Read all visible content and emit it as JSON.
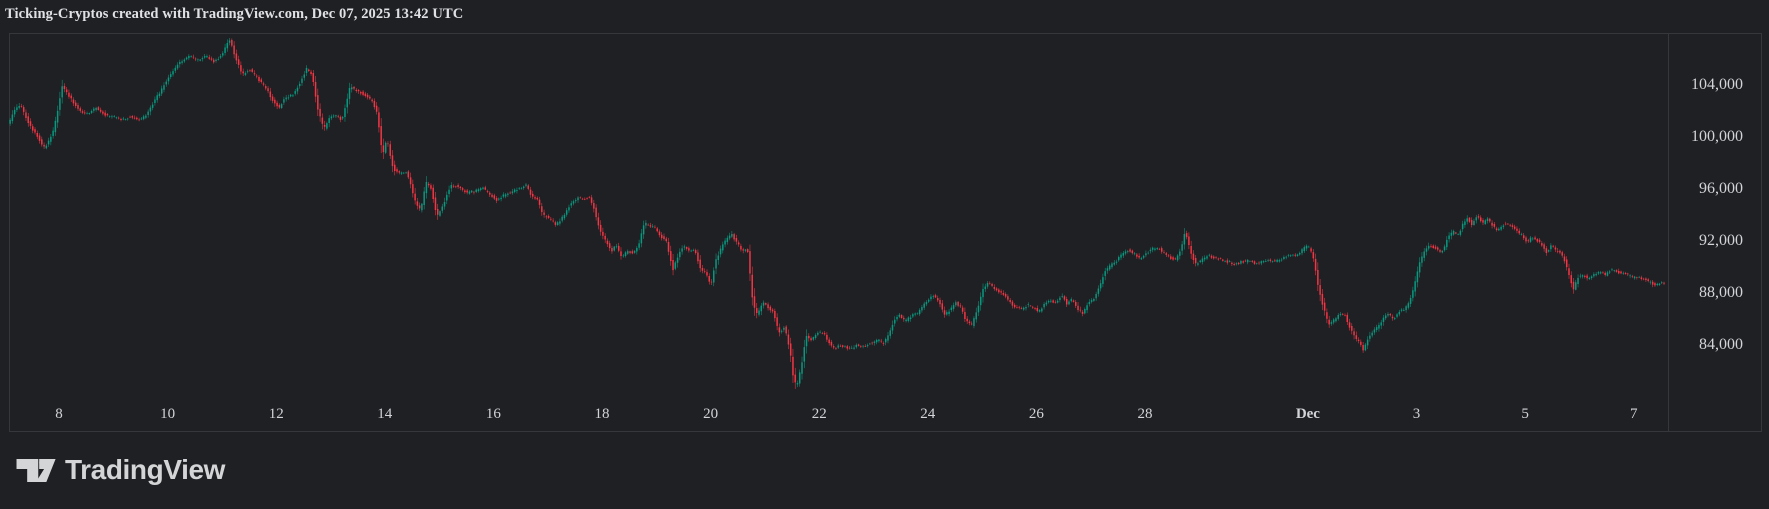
{
  "header": {
    "attribution": "Ticking-Cryptos created with TradingView.com, Dec 07, 2025 13:42 UTC"
  },
  "footer": {
    "brand": "TradingView"
  },
  "colors": {
    "background": "#1f2023",
    "border": "#35373c",
    "text": "#d2d4d8",
    "candle_up": "#089981",
    "candle_down": "#f23645"
  },
  "chart_data": {
    "type": "candlestick",
    "title": "",
    "xlabel": "",
    "ylabel": "",
    "grid": false,
    "legend": "none",
    "interval": "1h",
    "time_span": "Nov 7 2025 - Dec 7 2025 13:42 UTC",
    "y_axis": {
      "side": "right",
      "ylim": [
        80200,
        108600
      ],
      "ticks": [
        {
          "label": "104,000",
          "value": 104000
        },
        {
          "label": "100,000",
          "value": 100000
        },
        {
          "label": "96,000",
          "value": 96000
        },
        {
          "label": "92,000",
          "value": 92000
        },
        {
          "label": "88,000",
          "value": 88000
        },
        {
          "label": "84,000",
          "value": 84000
        }
      ]
    },
    "x_axis": {
      "side": "bottom",
      "ticks": [
        {
          "label": "8",
          "day": 8,
          "bold": false
        },
        {
          "label": "10",
          "day": 10,
          "bold": false
        },
        {
          "label": "12",
          "day": 12,
          "bold": false
        },
        {
          "label": "14",
          "day": 14,
          "bold": false
        },
        {
          "label": "16",
          "day": 16,
          "bold": false
        },
        {
          "label": "18",
          "day": 18,
          "bold": false
        },
        {
          "label": "20",
          "day": 20,
          "bold": false
        },
        {
          "label": "22",
          "day": 22,
          "bold": false
        },
        {
          "label": "24",
          "day": 24,
          "bold": false
        },
        {
          "label": "26",
          "day": 26,
          "bold": false
        },
        {
          "label": "28",
          "day": 28,
          "bold": false
        },
        {
          "label": "Dec",
          "day": 31,
          "bold": true
        },
        {
          "label": "3",
          "day": 33,
          "bold": false
        },
        {
          "label": "5",
          "day": 35,
          "bold": false
        },
        {
          "label": "7",
          "day": 37,
          "bold": false
        }
      ]
    },
    "series": {
      "name": "price",
      "unit": "USD",
      "note": "waypoints traced from chart: [day-of-November (Dec 1 = 31), price USD]; candles interpolated hourly",
      "start_day": 7.1,
      "end_day": 37.6,
      "points": [
        [
          7.12,
          101000
        ],
        [
          7.2,
          101900
        ],
        [
          7.33,
          102500
        ],
        [
          7.5,
          100900
        ],
        [
          7.62,
          100200
        ],
        [
          7.78,
          99100
        ],
        [
          7.95,
          100600
        ],
        [
          8.1,
          103950
        ],
        [
          8.25,
          103000
        ],
        [
          8.42,
          102000
        ],
        [
          8.58,
          101800
        ],
        [
          8.72,
          102300
        ],
        [
          8.88,
          101700
        ],
        [
          9.05,
          101550
        ],
        [
          9.2,
          101300
        ],
        [
          9.35,
          101550
        ],
        [
          9.5,
          101300
        ],
        [
          9.65,
          101650
        ],
        [
          9.8,
          102800
        ],
        [
          9.95,
          103800
        ],
        [
          10.12,
          105000
        ],
        [
          10.28,
          105800
        ],
        [
          10.45,
          106200
        ],
        [
          10.6,
          105900
        ],
        [
          10.75,
          106250
        ],
        [
          10.9,
          105800
        ],
        [
          11.02,
          106200
        ],
        [
          11.18,
          107550
        ],
        [
          11.3,
          106000
        ],
        [
          11.42,
          104800
        ],
        [
          11.55,
          105200
        ],
        [
          11.7,
          104500
        ],
        [
          11.85,
          103800
        ],
        [
          12.0,
          102600
        ],
        [
          12.1,
          102300
        ],
        [
          12.22,
          103050
        ],
        [
          12.35,
          103250
        ],
        [
          12.5,
          104350
        ],
        [
          12.6,
          105250
        ],
        [
          12.7,
          104800
        ],
        [
          12.82,
          101900
        ],
        [
          12.92,
          100600
        ],
        [
          13.02,
          101500
        ],
        [
          13.12,
          101700
        ],
        [
          13.25,
          101300
        ],
        [
          13.4,
          103850
        ],
        [
          13.52,
          103600
        ],
        [
          13.65,
          103300
        ],
        [
          13.8,
          102800
        ],
        [
          13.9,
          101900
        ],
        [
          14.0,
          98600
        ],
        [
          14.08,
          99800
        ],
        [
          14.2,
          97500
        ],
        [
          14.33,
          97200
        ],
        [
          14.45,
          97350
        ],
        [
          14.6,
          95100
        ],
        [
          14.7,
          94300
        ],
        [
          14.8,
          96500
        ],
        [
          14.9,
          96000
        ],
        [
          15.0,
          93900
        ],
        [
          15.1,
          94600
        ],
        [
          15.25,
          96300
        ],
        [
          15.4,
          96200
        ],
        [
          15.55,
          95700
        ],
        [
          15.7,
          95850
        ],
        [
          15.85,
          96050
        ],
        [
          16.0,
          95500
        ],
        [
          16.12,
          95100
        ],
        [
          16.25,
          95600
        ],
        [
          16.4,
          95850
        ],
        [
          16.55,
          96050
        ],
        [
          16.65,
          96350
        ],
        [
          16.75,
          95400
        ],
        [
          16.85,
          95200
        ],
        [
          16.95,
          94000
        ],
        [
          17.08,
          93700
        ],
        [
          17.2,
          93250
        ],
        [
          17.35,
          94000
        ],
        [
          17.45,
          94800
        ],
        [
          17.6,
          95350
        ],
        [
          17.7,
          95200
        ],
        [
          17.8,
          95400
        ],
        [
          17.9,
          94400
        ],
        [
          18.0,
          92900
        ],
        [
          18.1,
          92100
        ],
        [
          18.22,
          91200
        ],
        [
          18.3,
          91700
        ],
        [
          18.4,
          90800
        ],
        [
          18.5,
          91200
        ],
        [
          18.62,
          91100
        ],
        [
          18.72,
          91800
        ],
        [
          18.82,
          93400
        ],
        [
          18.92,
          93100
        ],
        [
          19.02,
          93000
        ],
        [
          19.12,
          92400
        ],
        [
          19.22,
          92000
        ],
        [
          19.35,
          89800
        ],
        [
          19.45,
          91000
        ],
        [
          19.55,
          91650
        ],
        [
          19.65,
          91200
        ],
        [
          19.75,
          91350
        ],
        [
          19.85,
          89900
        ],
        [
          19.95,
          89600
        ],
        [
          20.05,
          88600
        ],
        [
          20.12,
          90300
        ],
        [
          20.22,
          91300
        ],
        [
          20.32,
          92100
        ],
        [
          20.42,
          92550
        ],
        [
          20.52,
          91900
        ],
        [
          20.62,
          91300
        ],
        [
          20.72,
          91450
        ],
        [
          20.82,
          87200
        ],
        [
          20.9,
          86300
        ],
        [
          21.0,
          87300
        ],
        [
          21.1,
          86900
        ],
        [
          21.2,
          86500
        ],
        [
          21.3,
          84900
        ],
        [
          21.4,
          85400
        ],
        [
          21.5,
          83700
        ],
        [
          21.57,
          81300
        ],
        [
          21.63,
          80800
        ],
        [
          21.72,
          82600
        ],
        [
          21.8,
          84800
        ],
        [
          21.9,
          84400
        ],
        [
          22.0,
          85000
        ],
        [
          22.12,
          84900
        ],
        [
          22.22,
          84200
        ],
        [
          22.32,
          83700
        ],
        [
          22.42,
          84000
        ],
        [
          22.52,
          83900
        ],
        [
          22.62,
          83650
        ],
        [
          22.72,
          84000
        ],
        [
          22.85,
          83900
        ],
        [
          23.0,
          84200
        ],
        [
          23.12,
          84400
        ],
        [
          23.22,
          84100
        ],
        [
          23.32,
          84800
        ],
        [
          23.42,
          85900
        ],
        [
          23.52,
          86300
        ],
        [
          23.62,
          85800
        ],
        [
          23.72,
          86200
        ],
        [
          23.85,
          86450
        ],
        [
          23.95,
          87050
        ],
        [
          24.05,
          87450
        ],
        [
          24.15,
          87850
        ],
        [
          24.25,
          87300
        ],
        [
          24.35,
          86300
        ],
        [
          24.45,
          86700
        ],
        [
          24.55,
          87300
        ],
        [
          24.65,
          86900
        ],
        [
          24.75,
          85800
        ],
        [
          24.85,
          85550
        ],
        [
          24.95,
          86700
        ],
        [
          25.05,
          88300
        ],
        [
          25.15,
          88850
        ],
        [
          25.25,
          88450
        ],
        [
          25.35,
          88100
        ],
        [
          25.45,
          87800
        ],
        [
          25.55,
          87300
        ],
        [
          25.65,
          86900
        ],
        [
          25.78,
          86800
        ],
        [
          25.88,
          87100
        ],
        [
          25.98,
          86900
        ],
        [
          26.08,
          86550
        ],
        [
          26.18,
          87100
        ],
        [
          26.3,
          87500
        ],
        [
          26.4,
          87200
        ],
        [
          26.5,
          87850
        ],
        [
          26.6,
          87200
        ],
        [
          26.7,
          87500
        ],
        [
          26.8,
          86800
        ],
        [
          26.9,
          86400
        ],
        [
          27.0,
          87300
        ],
        [
          27.1,
          87550
        ],
        [
          27.2,
          88500
        ],
        [
          27.3,
          89650
        ],
        [
          27.4,
          90100
        ],
        [
          27.5,
          90400
        ],
        [
          27.62,
          91000
        ],
        [
          27.72,
          91300
        ],
        [
          27.85,
          91000
        ],
        [
          27.95,
          90600
        ],
        [
          28.05,
          91000
        ],
        [
          28.18,
          91400
        ],
        [
          28.28,
          91500
        ],
        [
          28.38,
          91100
        ],
        [
          28.5,
          90700
        ],
        [
          28.6,
          90600
        ],
        [
          28.7,
          91300
        ],
        [
          28.78,
          92850
        ],
        [
          28.88,
          91100
        ],
        [
          28.98,
          90200
        ],
        [
          29.1,
          90600
        ],
        [
          29.2,
          90900
        ],
        [
          29.32,
          90700
        ],
        [
          29.45,
          90550
        ],
        [
          29.58,
          90400
        ],
        [
          29.7,
          90200
        ],
        [
          29.82,
          90400
        ],
        [
          29.95,
          90500
        ],
        [
          30.08,
          90250
        ],
        [
          30.2,
          90400
        ],
        [
          30.32,
          90500
        ],
        [
          30.45,
          90450
        ],
        [
          30.58,
          90650
        ],
        [
          30.7,
          91000
        ],
        [
          30.8,
          90900
        ],
        [
          30.9,
          91150
        ],
        [
          31.0,
          91600
        ],
        [
          31.08,
          91450
        ],
        [
          31.16,
          90400
        ],
        [
          31.24,
          88300
        ],
        [
          31.32,
          87000
        ],
        [
          31.42,
          85600
        ],
        [
          31.52,
          85900
        ],
        [
          31.62,
          86350
        ],
        [
          31.72,
          86300
        ],
        [
          31.8,
          85500
        ],
        [
          31.9,
          84600
        ],
        [
          32.0,
          84200
        ],
        [
          32.06,
          83600
        ],
        [
          32.14,
          84400
        ],
        [
          32.24,
          85000
        ],
        [
          32.34,
          85450
        ],
        [
          32.44,
          86100
        ],
        [
          32.52,
          86400
        ],
        [
          32.62,
          86000
        ],
        [
          32.72,
          86550
        ],
        [
          32.82,
          86750
        ],
        [
          32.9,
          87200
        ],
        [
          32.97,
          88100
        ],
        [
          33.04,
          89300
        ],
        [
          33.1,
          90400
        ],
        [
          33.18,
          91100
        ],
        [
          33.28,
          91700
        ],
        [
          33.38,
          91450
        ],
        [
          33.48,
          91150
        ],
        [
          33.55,
          91400
        ],
        [
          33.62,
          92400
        ],
        [
          33.72,
          92700
        ],
        [
          33.82,
          92500
        ],
        [
          33.9,
          93400
        ],
        [
          33.98,
          93800
        ],
        [
          34.06,
          93200
        ],
        [
          34.16,
          94000
        ],
        [
          34.26,
          93300
        ],
        [
          34.34,
          93700
        ],
        [
          34.44,
          93200
        ],
        [
          34.52,
          92800
        ],
        [
          34.62,
          93250
        ],
        [
          34.72,
          93300
        ],
        [
          34.82,
          93000
        ],
        [
          34.9,
          92700
        ],
        [
          35.0,
          92400
        ],
        [
          35.08,
          91900
        ],
        [
          35.16,
          92300
        ],
        [
          35.26,
          92050
        ],
        [
          35.36,
          91700
        ],
        [
          35.44,
          91100
        ],
        [
          35.52,
          91700
        ],
        [
          35.6,
          91300
        ],
        [
          35.7,
          91000
        ],
        [
          35.78,
          90400
        ],
        [
          35.86,
          89200
        ],
        [
          35.94,
          88200
        ],
        [
          36.0,
          89200
        ],
        [
          36.1,
          89400
        ],
        [
          36.2,
          89100
        ],
        [
          36.3,
          89400
        ],
        [
          36.42,
          89650
        ],
        [
          36.52,
          89400
        ],
        [
          36.62,
          89800
        ],
        [
          36.75,
          89600
        ],
        [
          36.88,
          89550
        ],
        [
          37.0,
          89200
        ],
        [
          37.12,
          89250
        ],
        [
          37.25,
          89050
        ],
        [
          37.35,
          88800
        ],
        [
          37.45,
          88600
        ],
        [
          37.57,
          88800
        ]
      ]
    }
  }
}
